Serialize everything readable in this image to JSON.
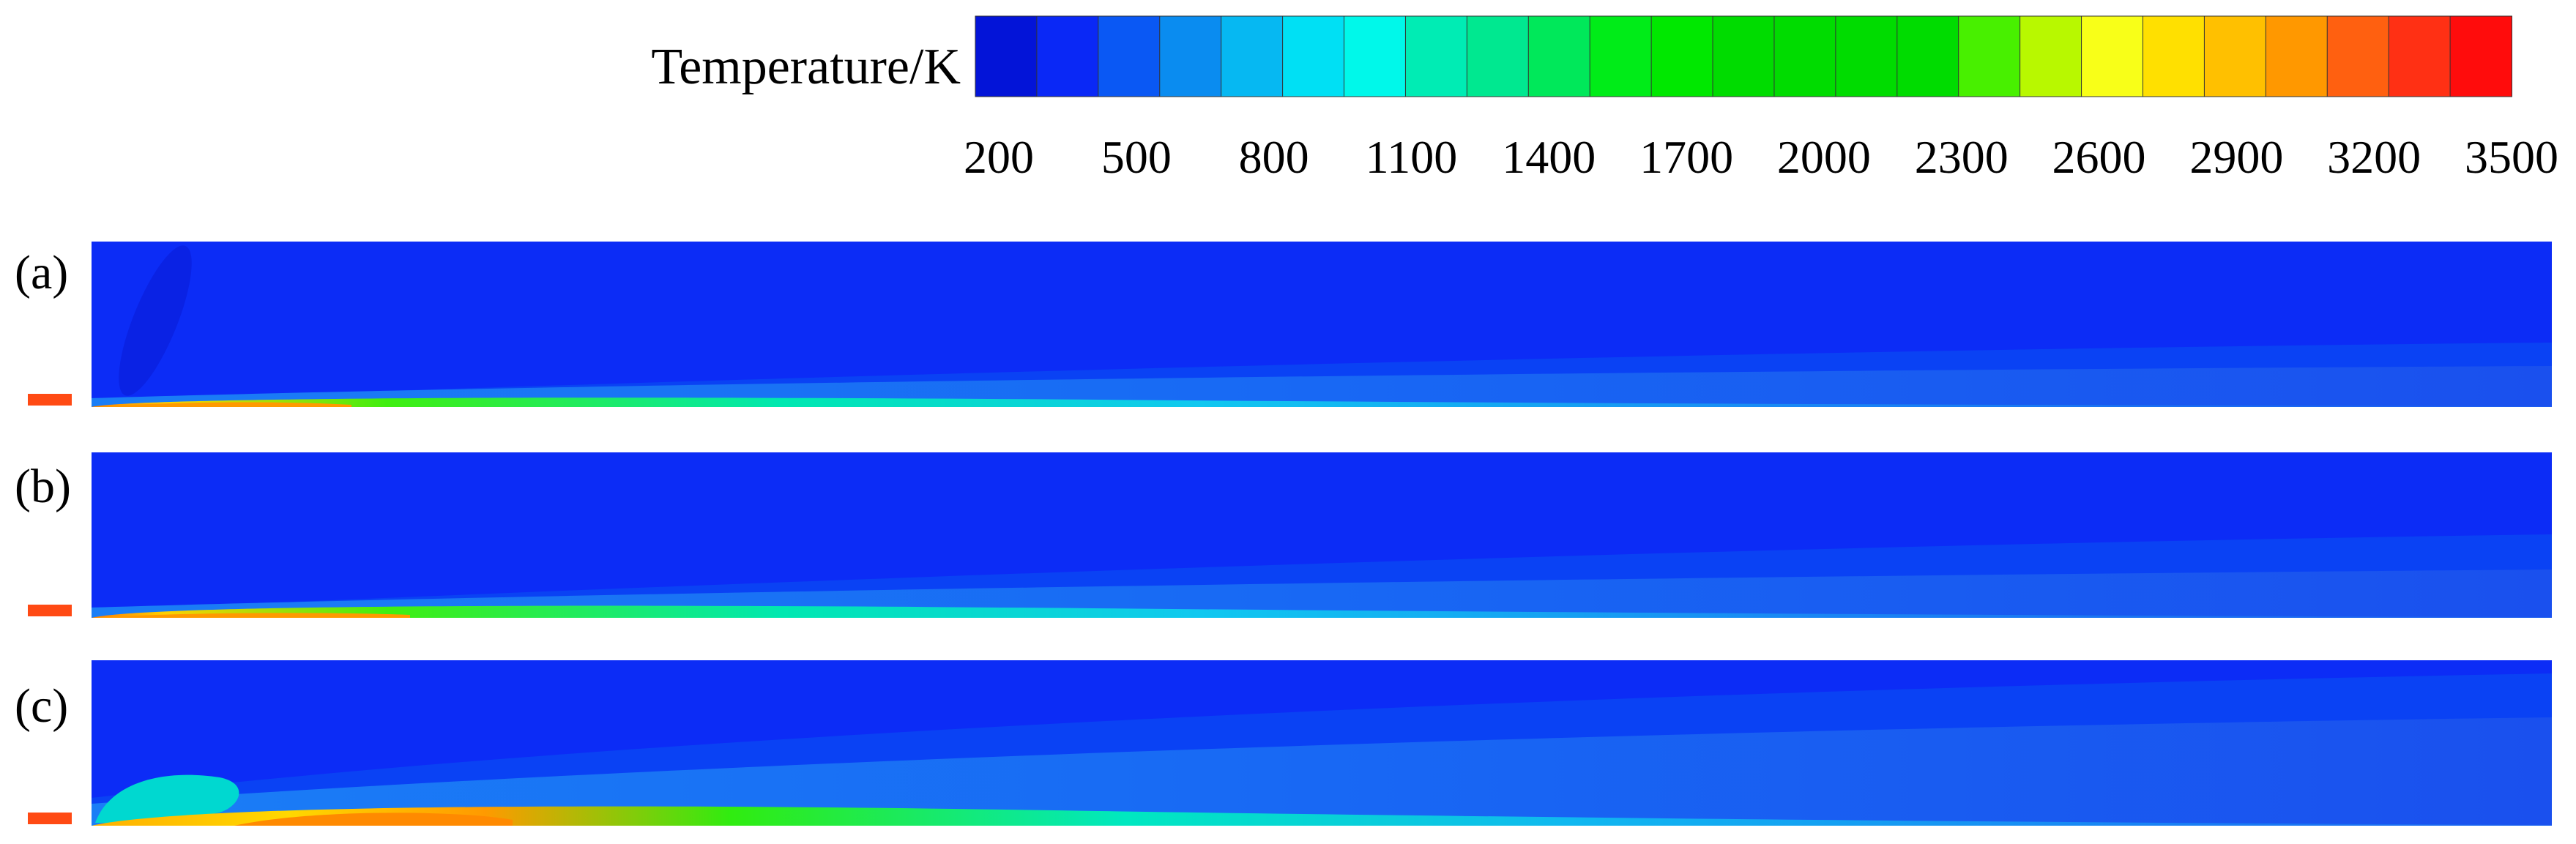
{
  "colorbar": {
    "title": "Temperature/K",
    "min": 200,
    "max": 3500,
    "tick_labels": [
      "200",
      "500",
      "800",
      "1100",
      "1400",
      "1700",
      "2000",
      "2300",
      "2600",
      "2900",
      "3200",
      "3500"
    ],
    "colors": [
      "#0314d8",
      "#0a28f6",
      "#0a58f4",
      "#0a8cf0",
      "#06b8f2",
      "#00e0f4",
      "#00f8ea",
      "#00ecb4",
      "#00e890",
      "#00e85a",
      "#00ec18",
      "#00e800",
      "#00dc00",
      "#00dc00",
      "#00dc00",
      "#00dc00",
      "#48f000",
      "#b8f800",
      "#f8ff18",
      "#ffe000",
      "#ffc000",
      "#ff9800",
      "#ff6010",
      "#ff3014",
      "#ff0c0c"
    ]
  },
  "panels": [
    {
      "label": "(a)"
    },
    {
      "label": "(b)"
    },
    {
      "label": "(c)"
    }
  ]
}
